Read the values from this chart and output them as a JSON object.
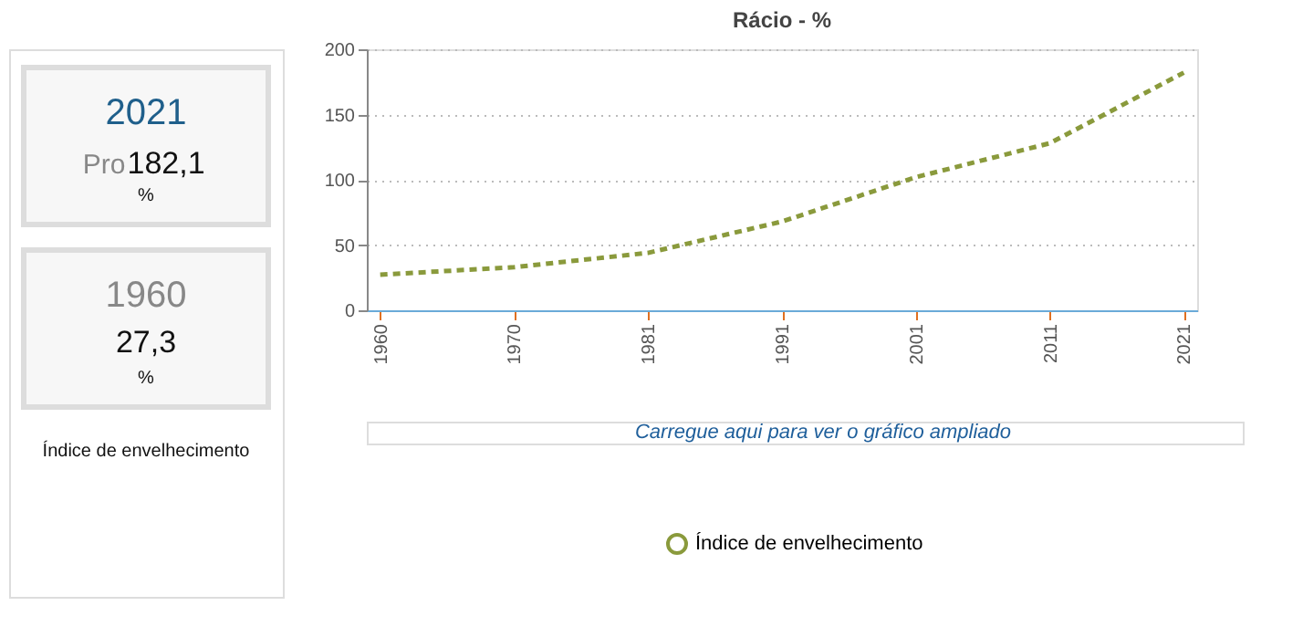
{
  "chart_data": {
    "type": "line",
    "title": "Rácio - %",
    "categories": [
      "1960",
      "1970",
      "1981",
      "1991",
      "2001",
      "2011",
      "2021"
    ],
    "series": [
      {
        "name": "Índice de envelhecimento",
        "color": "#8a9a3c",
        "values": [
          27.3,
          33,
          44,
          68,
          102,
          128,
          182.1
        ]
      }
    ],
    "ylim": [
      0,
      200
    ],
    "yticks": [
      0,
      50,
      100,
      150,
      200
    ],
    "grid": "y",
    "legend": "bottom",
    "marker": "none",
    "line_style": "dashed",
    "annotations": [
      "2021",
      "Pro",
      "182,1",
      "%",
      "1960",
      "27,3",
      "%",
      "Índice de envelhecimento",
      "Carregue aqui para ver o gráfico ampliado"
    ]
  }
}
